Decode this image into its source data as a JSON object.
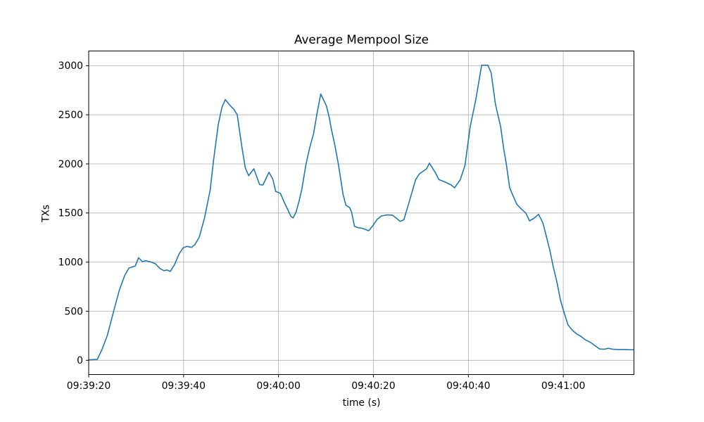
{
  "chart_data": {
    "type": "line",
    "title": "Average Mempool Size",
    "xlabel": "time (s)",
    "ylabel": "TXs",
    "grid": true,
    "legend": "none",
    "line_color": "#1f77b4",
    "grid_color": "#b0b0b0",
    "spine_color": "#000000",
    "x_tick_labels": [
      "09:39:20",
      "09:39:40",
      "09:40:00",
      "09:40:20",
      "09:40:40",
      "09:41:00"
    ],
    "x_tick_seconds": [
      0,
      20,
      40,
      60,
      80,
      100
    ],
    "y_ticks": [
      0,
      500,
      1000,
      1500,
      2000,
      2500,
      3000
    ],
    "xlim_seconds": [
      0,
      114.9
    ],
    "ylim": [
      -145,
      3150
    ],
    "x_origin_time": "09:39:20",
    "series": [
      {
        "name": "Average Mempool Size",
        "x_seconds": [
          0,
          1.8,
          2.8,
          3.9,
          5.5,
          6.5,
          7.6,
          8.5,
          9.8,
          10.5,
          11.3,
          12,
          13.2,
          14,
          15,
          15.9,
          16.5,
          17.2,
          18.1,
          19,
          19.9,
          20.7,
          21.7,
          22.4,
          23.3,
          24.4,
          25.6,
          26.3,
          27.3,
          28.1,
          28.8,
          29.7,
          30.6,
          31.3,
          32.2,
          33,
          33.7,
          34.8,
          36,
          36.7,
          38,
          38.8,
          39.4,
          40.4,
          41.2,
          41.9,
          42.6,
          43.1,
          43.7,
          44.3,
          44.9,
          45.8,
          46.6,
          47.4,
          48.1,
          48.9,
          50.1,
          50.7,
          51.1,
          51.9,
          52.6,
          53.6,
          54.2,
          55,
          55.4,
          56,
          56.8,
          57.6,
          59,
          59.7,
          60.8,
          61.7,
          62.9,
          64,
          64.9,
          65.6,
          66.4,
          67.4,
          68.9,
          69.7,
          71.2,
          71.8,
          73,
          73.8,
          74.9,
          76.4,
          77.1,
          78.3,
          79.3,
          80.4,
          81.6,
          82.8,
          84.1,
          84.8,
          85.7,
          86.8,
          87.5,
          88,
          88.7,
          89.3,
          90.2,
          91.2,
          92.1,
          92.9,
          93.8,
          94.8,
          95.7,
          96.4,
          97.2,
          97.9,
          98.7,
          99.4,
          100.1,
          101,
          101.9,
          102.8,
          103.7,
          104.6,
          105.8,
          106.8,
          107.7,
          108.7,
          109.5,
          110.5,
          111.7,
          112.9,
          113.9,
          114.8
        ],
        "y_txs": [
          5,
          8,
          110,
          250,
          545,
          720,
          865,
          940,
          960,
          1045,
          1005,
          1015,
          1000,
          985,
          935,
          912,
          920,
          905,
          975,
          1080,
          1145,
          1160,
          1150,
          1180,
          1255,
          1450,
          1735,
          2035,
          2400,
          2580,
          2655,
          2600,
          2555,
          2500,
          2200,
          1960,
          1880,
          1950,
          1790,
          1785,
          1915,
          1845,
          1720,
          1700,
          1610,
          1540,
          1465,
          1450,
          1510,
          1615,
          1740,
          2000,
          2170,
          2310,
          2510,
          2712,
          2590,
          2470,
          2365,
          2185,
          2000,
          1690,
          1580,
          1555,
          1510,
          1365,
          1350,
          1345,
          1320,
          1360,
          1435,
          1470,
          1480,
          1478,
          1445,
          1415,
          1430,
          1590,
          1840,
          1900,
          1950,
          2007,
          1915,
          1840,
          1820,
          1785,
          1757,
          1840,
          1985,
          2380,
          2660,
          3005,
          3005,
          2930,
          2610,
          2380,
          2140,
          2000,
          1760,
          1690,
          1590,
          1540,
          1500,
          1420,
          1445,
          1487,
          1400,
          1270,
          1115,
          950,
          790,
          615,
          500,
          360,
          307,
          270,
          245,
          210,
          180,
          145,
          115,
          113,
          122,
          112,
          110,
          110,
          108,
          107
        ]
      }
    ]
  }
}
